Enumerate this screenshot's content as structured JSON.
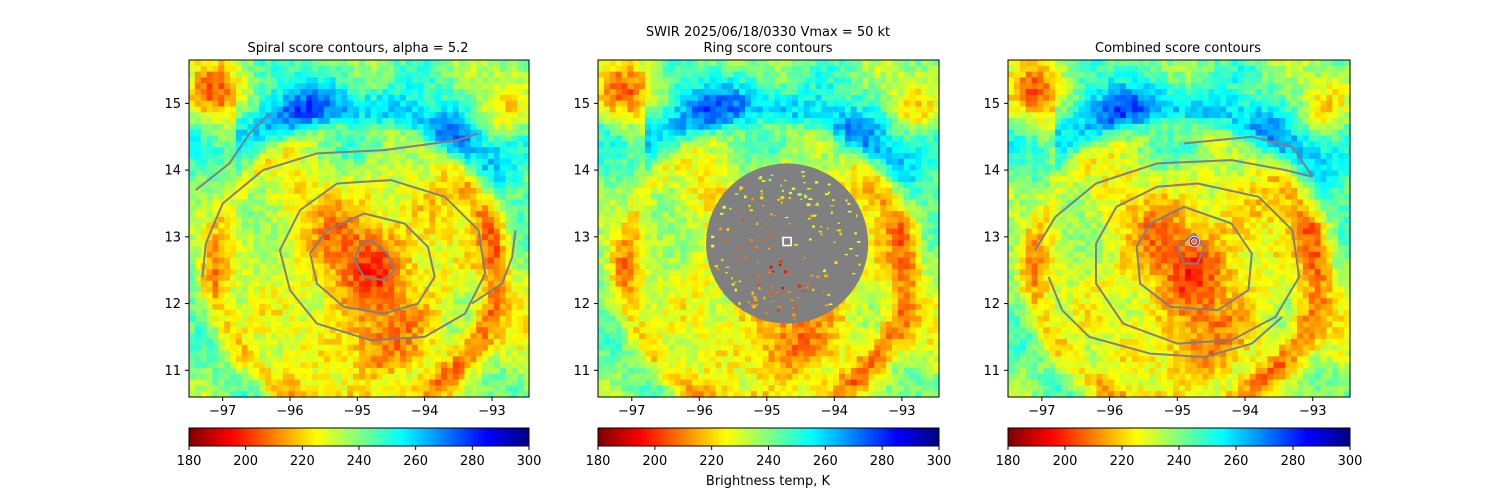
{
  "suptitle": "SWIR  2025/06/18/0330    Vmax = 50 kt",
  "colorbar_label": "Brightness temp, K",
  "colormap": [
    "#800000",
    "#ff0000",
    "#ff8000",
    "#ffff00",
    "#80ff80",
    "#00ffff",
    "#0080ff",
    "#0000ff",
    "#000080"
  ],
  "contour_color": "#808080",
  "chart_data": [
    {
      "type": "heatmap",
      "title": "Spiral score contours, alpha =  5.2",
      "xlabel": "",
      "ylabel": "",
      "xlim": [
        -97.5,
        -92.45
      ],
      "ylim": [
        10.6,
        15.65
      ],
      "x_ticks": [
        -97,
        -96,
        -95,
        -94,
        -93
      ],
      "x_tick_labels": [
        "−97",
        "−96",
        "−95",
        "−94",
        "−93"
      ],
      "y_ticks": [
        11,
        12,
        13,
        14,
        15
      ],
      "y_tick_labels": [
        "11",
        "12",
        "13",
        "14",
        "15"
      ],
      "colorbar": {
        "min": 180,
        "max": 300,
        "ticks": [
          180,
          200,
          220,
          240,
          260,
          280,
          300
        ],
        "tick_labels": [
          "180",
          "200",
          "220",
          "240",
          "260",
          "280",
          "300"
        ]
      },
      "storm_center": [
        -94.8,
        12.6
      ],
      "overlay": "spiral contours",
      "contours": [
        [
          [
            -94.8,
            12.95
          ],
          [
            -94.55,
            12.75
          ],
          [
            -94.45,
            12.5
          ],
          [
            -94.6,
            12.35
          ],
          [
            -94.9,
            12.4
          ],
          [
            -95.05,
            12.65
          ],
          [
            -94.95,
            12.9
          ],
          [
            -94.8,
            12.95
          ]
        ],
        [
          [
            -94.9,
            13.35
          ],
          [
            -94.3,
            13.2
          ],
          [
            -93.95,
            12.85
          ],
          [
            -93.85,
            12.4
          ],
          [
            -94.1,
            12.0
          ],
          [
            -94.6,
            11.85
          ],
          [
            -95.2,
            11.95
          ],
          [
            -95.6,
            12.3
          ],
          [
            -95.7,
            12.75
          ],
          [
            -95.45,
            13.1
          ],
          [
            -94.9,
            13.35
          ]
        ],
        [
          [
            -94.5,
            13.85
          ],
          [
            -93.7,
            13.6
          ],
          [
            -93.2,
            13.1
          ],
          [
            -93.1,
            12.45
          ],
          [
            -93.4,
            11.85
          ],
          [
            -94.0,
            11.5
          ],
          [
            -94.8,
            11.45
          ],
          [
            -95.6,
            11.7
          ],
          [
            -96.0,
            12.2
          ],
          [
            -96.15,
            12.8
          ],
          [
            -95.85,
            13.4
          ],
          [
            -95.3,
            13.8
          ],
          [
            -94.5,
            13.85
          ]
        ],
        [
          [
            -97.3,
            12.4
          ],
          [
            -97.25,
            12.9
          ],
          [
            -97.0,
            13.5
          ],
          [
            -96.4,
            14.0
          ],
          [
            -95.6,
            14.25
          ],
          [
            -94.6,
            14.3
          ],
          [
            -93.5,
            14.45
          ],
          [
            -93.2,
            14.55
          ]
        ],
        [
          [
            -97.4,
            13.7
          ],
          [
            -96.9,
            14.1
          ],
          [
            -96.6,
            14.55
          ],
          [
            -96.3,
            14.85
          ]
        ],
        [
          [
            -93.3,
            12.0
          ],
          [
            -92.85,
            12.3
          ],
          [
            -92.7,
            12.7
          ],
          [
            -92.65,
            13.1
          ]
        ]
      ]
    },
    {
      "type": "heatmap",
      "title": "Ring score contours",
      "xlabel": "",
      "ylabel": "",
      "xlim": [
        -97.5,
        -92.45
      ],
      "ylim": [
        10.6,
        15.65
      ],
      "x_ticks": [
        -97,
        -96,
        -95,
        -94,
        -93
      ],
      "x_tick_labels": [
        "−97",
        "−96",
        "−95",
        "−94",
        "−93"
      ],
      "y_ticks": [
        11,
        12,
        13,
        14,
        15
      ],
      "y_tick_labels": [
        "11",
        "12",
        "13",
        "14",
        "15"
      ],
      "colorbar": {
        "min": 180,
        "max": 300,
        "ticks": [
          180,
          200,
          220,
          240,
          260,
          280,
          300
        ],
        "tick_labels": [
          "180",
          "200",
          "220",
          "240",
          "260",
          "280",
          "300"
        ]
      },
      "storm_center": [
        -94.8,
        12.6
      ],
      "overlay": "ring score disc",
      "ring_center": [
        -94.7,
        12.9
      ],
      "ring_radius_deg": 1.2,
      "marker": {
        "shape": "square",
        "x": -94.7,
        "y": 12.93
      }
    },
    {
      "type": "heatmap",
      "title": "Combined score contours",
      "xlabel": "",
      "ylabel": "",
      "xlim": [
        -97.5,
        -92.45
      ],
      "ylim": [
        10.6,
        15.65
      ],
      "x_ticks": [
        -97,
        -96,
        -95,
        -94,
        -93
      ],
      "x_tick_labels": [
        "−97",
        "−96",
        "−95",
        "−94",
        "−93"
      ],
      "y_ticks": [
        11,
        12,
        13,
        14,
        15
      ],
      "y_tick_labels": [
        "11",
        "12",
        "13",
        "14",
        "15"
      ],
      "colorbar": {
        "min": 180,
        "max": 300,
        "ticks": [
          180,
          200,
          220,
          240,
          260,
          280,
          300
        ],
        "tick_labels": [
          "180",
          "200",
          "220",
          "240",
          "260",
          "280",
          "300"
        ]
      },
      "storm_center": [
        -94.8,
        12.6
      ],
      "overlay": "combined contours",
      "marker": {
        "shape": "circle",
        "x": -94.75,
        "y": 12.93
      },
      "contours": [
        [
          [
            -94.75,
            13.05
          ],
          [
            -94.6,
            12.85
          ],
          [
            -94.7,
            12.6
          ],
          [
            -94.9,
            12.6
          ],
          [
            -95.0,
            12.85
          ],
          [
            -94.75,
            13.05
          ]
        ],
        [
          [
            -94.9,
            13.45
          ],
          [
            -94.2,
            13.2
          ],
          [
            -93.9,
            12.75
          ],
          [
            -93.95,
            12.2
          ],
          [
            -94.4,
            11.9
          ],
          [
            -95.1,
            11.95
          ],
          [
            -95.55,
            12.3
          ],
          [
            -95.6,
            12.85
          ],
          [
            -95.4,
            13.2
          ],
          [
            -94.9,
            13.45
          ]
        ],
        [
          [
            -94.7,
            13.8
          ],
          [
            -93.8,
            13.6
          ],
          [
            -93.3,
            13.1
          ],
          [
            -93.2,
            12.4
          ],
          [
            -93.55,
            11.8
          ],
          [
            -94.2,
            11.45
          ],
          [
            -95.0,
            11.4
          ],
          [
            -95.8,
            11.7
          ],
          [
            -96.2,
            12.3
          ],
          [
            -96.2,
            12.9
          ],
          [
            -95.9,
            13.45
          ],
          [
            -95.3,
            13.75
          ],
          [
            -94.7,
            13.8
          ]
        ],
        [
          [
            -97.1,
            12.8
          ],
          [
            -96.8,
            13.3
          ],
          [
            -96.2,
            13.8
          ],
          [
            -95.3,
            14.1
          ],
          [
            -94.2,
            14.15
          ],
          [
            -93.4,
            14.0
          ],
          [
            -93.0,
            13.9
          ]
        ],
        [
          [
            -93.0,
            13.9
          ],
          [
            -93.3,
            14.35
          ],
          [
            -93.9,
            14.5
          ],
          [
            -94.9,
            14.4
          ]
        ],
        [
          [
            -93.45,
            11.8
          ],
          [
            -93.9,
            11.4
          ],
          [
            -94.6,
            11.2
          ],
          [
            -95.4,
            11.25
          ],
          [
            -96.3,
            11.5
          ],
          [
            -96.7,
            11.9
          ],
          [
            -96.9,
            12.4
          ]
        ]
      ]
    }
  ]
}
